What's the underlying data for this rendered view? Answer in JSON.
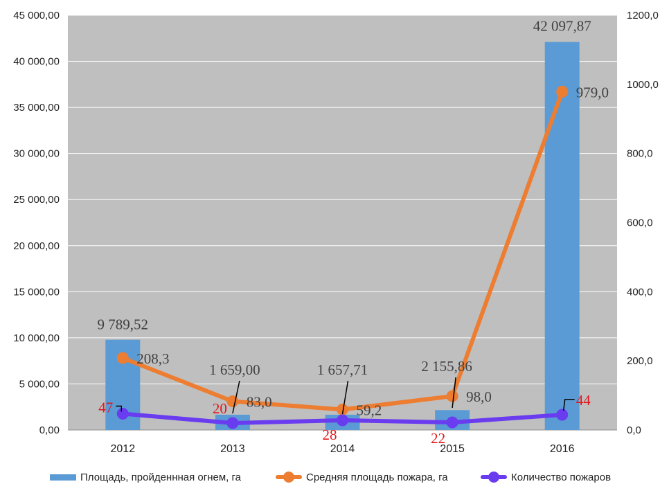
{
  "chart_data": {
    "type": "bar",
    "categories": [
      "2012",
      "2013",
      "2014",
      "2015",
      "2016"
    ],
    "series": [
      {
        "name": "Площадь, пройденнная огнем, га",
        "kind": "bar",
        "axis": "left",
        "color": "#5b9bd5",
        "values": [
          9789.52,
          1659.0,
          1657.71,
          2155.86,
          42097.87
        ],
        "labels": [
          "9 789,52",
          "1 659,00",
          "1 657,71",
          "2 155,86",
          "42 097,87"
        ]
      },
      {
        "name": "Средняя площадь пожара, га",
        "kind": "line",
        "axis": "right",
        "color": "#ed7d31",
        "values": [
          208.3,
          83.0,
          59.2,
          98.0,
          979.0
        ],
        "labels": [
          "208,3",
          "83,0",
          "59,2",
          "98,0",
          "979,0"
        ]
      },
      {
        "name": "Количество пожаров",
        "kind": "line",
        "axis": "right",
        "color": "#6a3cf0",
        "values": [
          47,
          20,
          28,
          22,
          44
        ],
        "labels": [
          "47",
          "20",
          "28",
          "22",
          "44"
        ],
        "label_color": "#e3161b"
      }
    ],
    "y_left": {
      "ylim": [
        0,
        45000
      ],
      "ticks": [
        0,
        5000,
        10000,
        15000,
        20000,
        25000,
        30000,
        35000,
        40000,
        45000
      ],
      "tick_labels": [
        "0,00",
        "5 000,00",
        "10 000,00",
        "15 000,00",
        "20 000,00",
        "25 000,00",
        "30 000,00",
        "35 000,00",
        "40 000,00",
        "45 000,00"
      ]
    },
    "y_right": {
      "ylim": [
        0,
        1200
      ],
      "ticks": [
        0,
        200,
        400,
        600,
        800,
        1000,
        1200
      ],
      "tick_labels": [
        "0,0",
        "200,0",
        "400,0",
        "600,0",
        "800,0",
        "1000,0",
        "1200,0"
      ]
    },
    "grid": true,
    "plot_background": "#bfbfbf",
    "legend_position": "bottom"
  }
}
